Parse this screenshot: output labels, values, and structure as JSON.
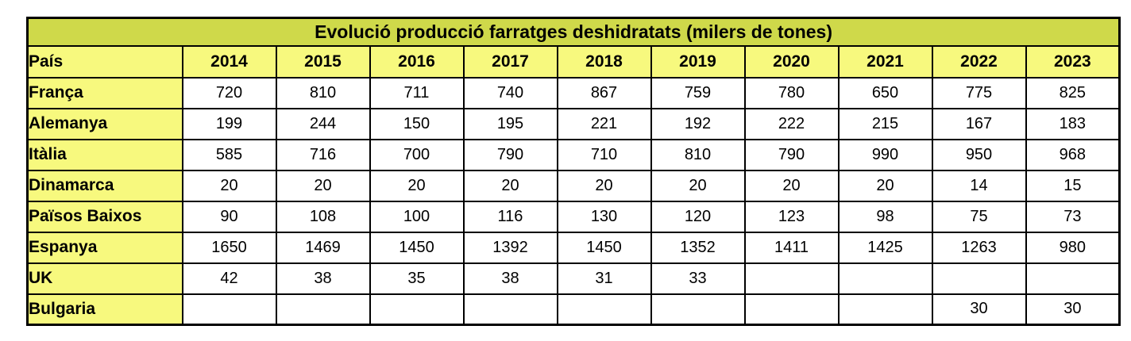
{
  "table": {
    "title": "Evolució producció farratges deshidratats (milers de tones)",
    "corner_header": "País",
    "year_headers": [
      "2014",
      "2015",
      "2016",
      "2017",
      "2018",
      "2019",
      "2020",
      "2021",
      "2022",
      "2023"
    ],
    "rows": [
      {
        "country": "França",
        "values": [
          "720",
          "810",
          "711",
          "740",
          "867",
          "759",
          "780",
          "650",
          "775",
          "825"
        ]
      },
      {
        "country": "Alemanya",
        "values": [
          "199",
          "244",
          "150",
          "195",
          "221",
          "192",
          "222",
          "215",
          "167",
          "183"
        ]
      },
      {
        "country": "Itàlia",
        "values": [
          "585",
          "716",
          "700",
          "790",
          "710",
          "810",
          "790",
          "990",
          "950",
          "968"
        ]
      },
      {
        "country": "Dinamarca",
        "values": [
          "20",
          "20",
          "20",
          "20",
          "20",
          "20",
          "20",
          "20",
          "14",
          "15"
        ]
      },
      {
        "country": "Països Baixos",
        "values": [
          "90",
          "108",
          "100",
          "116",
          "130",
          "120",
          "123",
          "98",
          "75",
          "73"
        ]
      },
      {
        "country": "Espanya",
        "values": [
          "1650",
          "1469",
          "1450",
          "1392",
          "1450",
          "1352",
          "1411",
          "1425",
          "1263",
          "980"
        ]
      },
      {
        "country": "UK",
        "values": [
          "42",
          "38",
          "35",
          "38",
          "31",
          "33",
          "",
          "",
          "",
          ""
        ]
      },
      {
        "country": "Bulgaria",
        "values": [
          "",
          "",
          "",
          "",
          "",
          "",
          "",
          "",
          "30",
          "30"
        ]
      }
    ],
    "colors": {
      "title_bg": "#cfd94a",
      "header_bg": "#f7f97e",
      "cell_bg": "#ffffff",
      "border": "#000000",
      "text": "#000000"
    }
  },
  "chart_data": {
    "type": "table",
    "title": "Evolució producció farratges deshidratats (milers de tones)",
    "unit": "milers de tones",
    "categories": [
      2014,
      2015,
      2016,
      2017,
      2018,
      2019,
      2020,
      2021,
      2022,
      2023
    ],
    "series": [
      {
        "name": "França",
        "values": [
          720,
          810,
          711,
          740,
          867,
          759,
          780,
          650,
          775,
          825
        ]
      },
      {
        "name": "Alemanya",
        "values": [
          199,
          244,
          150,
          195,
          221,
          192,
          222,
          215,
          167,
          183
        ]
      },
      {
        "name": "Itàlia",
        "values": [
          585,
          716,
          700,
          790,
          710,
          810,
          790,
          990,
          950,
          968
        ]
      },
      {
        "name": "Dinamarca",
        "values": [
          20,
          20,
          20,
          20,
          20,
          20,
          20,
          20,
          14,
          15
        ]
      },
      {
        "name": "Països Baixos",
        "values": [
          90,
          108,
          100,
          116,
          130,
          120,
          123,
          98,
          75,
          73
        ]
      },
      {
        "name": "Espanya",
        "values": [
          1650,
          1469,
          1450,
          1392,
          1450,
          1352,
          1411,
          1425,
          1263,
          980
        ]
      },
      {
        "name": "UK",
        "values": [
          42,
          38,
          35,
          38,
          31,
          33,
          null,
          null,
          null,
          null
        ]
      },
      {
        "name": "Bulgaria",
        "values": [
          null,
          null,
          null,
          null,
          null,
          null,
          null,
          null,
          30,
          30
        ]
      }
    ],
    "layout": {
      "header_row": "years",
      "row_labels": "countries",
      "grid": true
    }
  }
}
